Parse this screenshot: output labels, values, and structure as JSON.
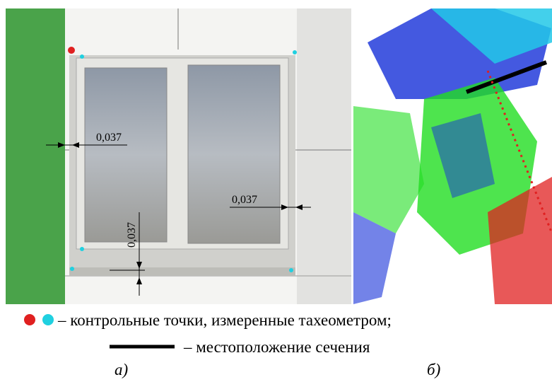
{
  "panels": [
    {
      "label": "а)",
      "annotations": [
        "0,037",
        "0,037",
        "0,037"
      ]
    },
    {
      "label": "б)"
    }
  ],
  "legend": [
    {
      "text": "– контрольные точки, измеренные тахеометром;"
    },
    {
      "text": "– местоположение сечения"
    }
  ]
}
